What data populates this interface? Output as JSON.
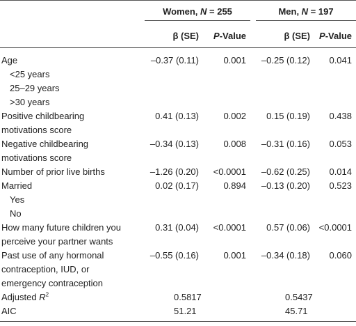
{
  "table": {
    "groups": [
      {
        "prefix": "Women, ",
        "italic": "N",
        "suffix": " = 255"
      },
      {
        "prefix": "Men, ",
        "italic": "N",
        "suffix": " = 197"
      }
    ],
    "subheaders": [
      {
        "text": "β (SE)"
      },
      {
        "italic": "P",
        "suffix": "-Value"
      },
      {
        "text": "β (SE)"
      },
      {
        "italic": "P",
        "suffix": "-Value"
      }
    ],
    "rows": [
      {
        "label": [
          "Age"
        ],
        "values": [
          "–0.37 (0.11)",
          "0.001",
          "–0.25 (0.12)",
          "0.041"
        ]
      },
      {
        "label": [
          "<25 years"
        ],
        "level": 1
      },
      {
        "label": [
          "25–29 years"
        ],
        "level": 1
      },
      {
        "label": [
          ">30 years"
        ],
        "level": 1
      },
      {
        "label": [
          "Positive childbearing",
          "motivations score"
        ],
        "values": [
          "0.41 (0.13)",
          "0.002",
          "0.15 (0.19)",
          "0.438"
        ]
      },
      {
        "label": [
          "Negative childbearing",
          "motivations score"
        ],
        "values": [
          "–0.34 (0.13)",
          "0.008",
          "–0.31 (0.16)",
          "0.053"
        ]
      },
      {
        "label": [
          "Number of prior live births"
        ],
        "values": [
          "–1.26 (0.20)",
          "<0.0001",
          "–0.62 (0.25)",
          "0.014"
        ]
      },
      {
        "label": [
          "Married"
        ],
        "values": [
          "0.02 (0.17)",
          "0.894",
          "–0.13 (0.20)",
          "0.523"
        ]
      },
      {
        "label": [
          "Yes"
        ],
        "level": 1
      },
      {
        "label": [
          "No"
        ],
        "level": 1
      },
      {
        "label": [
          "How many future children you",
          "perceive your partner wants"
        ],
        "values": [
          "0.31 (0.04)",
          "<0.0001",
          "0.57 (0.06)",
          "<0.0001"
        ]
      },
      {
        "label": [
          "Past use of any hormonal",
          "contraception, IUD, or",
          "emergency contraception"
        ],
        "values": [
          "–0.55 (0.16)",
          "0.001",
          "–0.34 (0.18)",
          "0.060"
        ]
      }
    ],
    "fit_rows": [
      {
        "label": {
          "text": "Adjusted ",
          "italic": "R",
          "sup": "2"
        },
        "values": [
          "0.5817",
          "0.5437"
        ]
      },
      {
        "label": {
          "text": "AIC"
        },
        "values": [
          "51.21",
          "45.71"
        ]
      }
    ]
  }
}
